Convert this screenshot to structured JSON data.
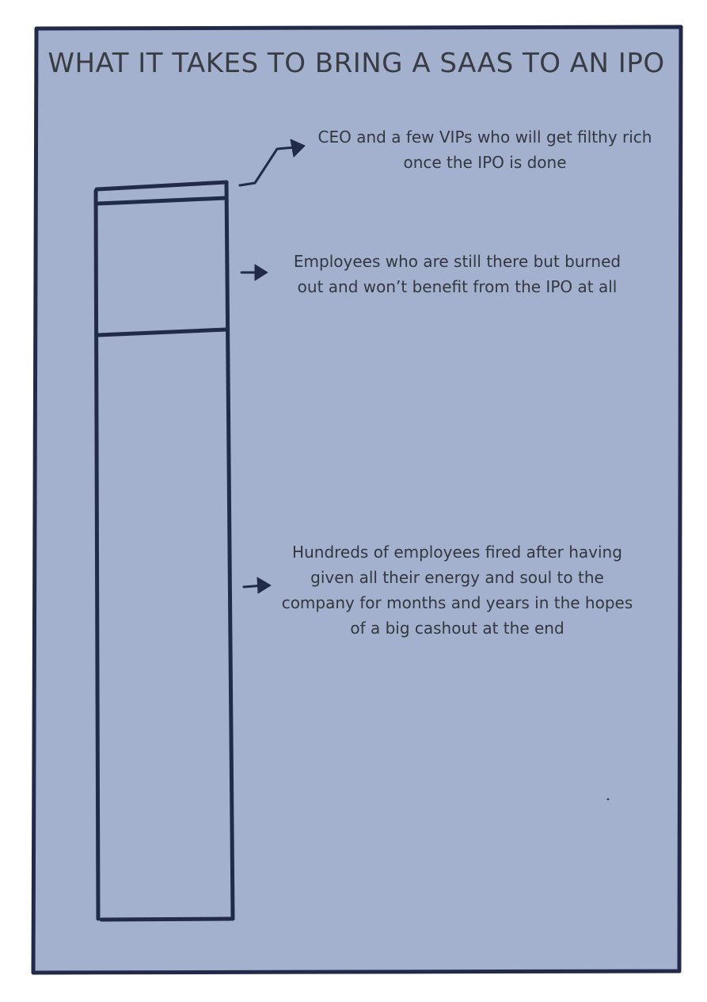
{
  "title": "WHAT IT TAKES TO BRING A SAAS TO AN IPO",
  "colors": {
    "panel_background": "#a3b1cf",
    "ink": "#222a4a",
    "text": "#34363e"
  },
  "segments": [
    {
      "name": "top",
      "label": "CEO and a few VIPs who will get filthy rich once the IPO is done"
    },
    {
      "name": "middle",
      "label": "Employees who are still there but burned out and won’t benefit from the IPO at all"
    },
    {
      "name": "bottom",
      "label": "Hundreds of employees fired after having given all their energy and soul to the company for months and years in the hopes of a big cashout at the end"
    }
  ]
}
